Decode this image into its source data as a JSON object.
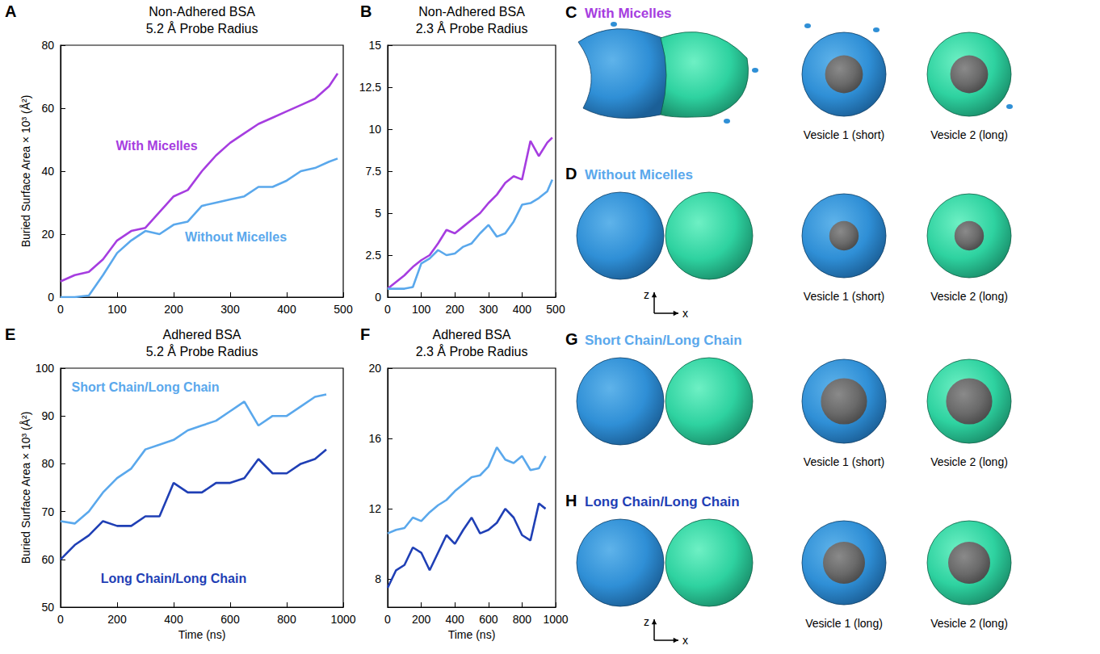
{
  "chart_data": [
    {
      "panel": "A",
      "type": "line",
      "title": "Non-Adhered BSA",
      "subtitle": "5.2 Å Probe Radius",
      "y_label": "Buried Surface Area × 10³ (Å²)",
      "grid": false,
      "x": [
        0,
        25,
        50,
        75,
        100,
        125,
        150,
        175,
        200,
        225,
        250,
        275,
        300,
        325,
        350,
        375,
        400,
        425,
        450,
        475,
        490
      ],
      "xlim": [
        0,
        500
      ],
      "xticks": [
        0,
        100,
        200,
        300,
        400,
        500
      ],
      "ylim": [
        0,
        80
      ],
      "yticks": [
        0,
        20,
        40,
        60,
        80
      ],
      "series": [
        {
          "name": "With Micelles",
          "color": "#a63de0",
          "values": [
            5,
            7,
            8,
            12,
            18,
            21,
            22,
            27,
            32,
            34,
            40,
            45,
            49,
            52,
            55,
            57,
            59,
            61,
            63,
            67,
            71
          ]
        },
        {
          "name": "Without Micelles",
          "color": "#5aa8ec",
          "values": [
            0,
            0,
            0.5,
            7,
            14,
            18,
            21,
            20,
            23,
            24,
            29,
            30,
            31,
            32,
            35,
            35,
            37,
            40,
            41,
            43,
            44
          ]
        }
      ]
    },
    {
      "panel": "B",
      "type": "line",
      "title": "Non-Adhered BSA",
      "subtitle": "2.3 Å Probe Radius",
      "grid": false,
      "x": [
        0,
        25,
        50,
        75,
        100,
        125,
        150,
        175,
        200,
        225,
        250,
        275,
        300,
        325,
        350,
        375,
        400,
        425,
        450,
        475,
        490
      ],
      "xlim": [
        0,
        500
      ],
      "xticks": [
        0,
        100,
        200,
        300,
        400,
        500
      ],
      "ylim": [
        0,
        15
      ],
      "yticks": [
        0,
        2.5,
        5,
        7.5,
        10,
        12.5,
        15
      ],
      "series": [
        {
          "color": "#a63de0",
          "values": [
            0.5,
            0.9,
            1.3,
            1.8,
            2.2,
            2.5,
            3.2,
            4.0,
            3.8,
            4.2,
            4.6,
            5.0,
            5.6,
            6.1,
            6.8,
            7.2,
            7.0,
            9.3,
            8.4,
            9.2,
            9.5
          ]
        },
        {
          "color": "#5aa8ec",
          "values": [
            0.5,
            0.5,
            0.5,
            0.6,
            2.0,
            2.3,
            2.8,
            2.5,
            2.6,
            3.0,
            3.2,
            3.8,
            4.3,
            3.6,
            3.8,
            4.5,
            5.5,
            5.6,
            5.9,
            6.3,
            7.0
          ]
        }
      ]
    },
    {
      "panel": "E",
      "type": "line",
      "title": "Adhered BSA",
      "subtitle": "5.2 Å Probe Radius",
      "y_label": "Buried Surface Area × 10³ (Å²)",
      "x_label": "Time (ns)",
      "grid": false,
      "x": [
        0,
        50,
        100,
        150,
        200,
        250,
        300,
        350,
        400,
        450,
        500,
        550,
        600,
        650,
        700,
        750,
        800,
        850,
        900,
        940
      ],
      "xlim": [
        0,
        1000
      ],
      "xticks": [
        0,
        200,
        400,
        600,
        800,
        1000
      ],
      "ylim": [
        50,
        100
      ],
      "yticks": [
        50,
        60,
        70,
        80,
        90,
        100
      ],
      "series": [
        {
          "name": "Short Chain/Long Chain",
          "color": "#5aa8ec",
          "values": [
            68,
            67.5,
            70,
            74,
            77,
            79,
            83,
            84,
            85,
            87,
            88,
            89,
            91,
            93,
            88,
            90,
            90,
            92,
            94,
            94.5
          ]
        },
        {
          "name": "Long Chain/Long Chain",
          "color": "#1f3fb5",
          "values": [
            60,
            63,
            65,
            68,
            67,
            67,
            69,
            69,
            76,
            74,
            74,
            76,
            76,
            77,
            81,
            78,
            78,
            80,
            81,
            83
          ]
        }
      ]
    },
    {
      "panel": "F",
      "type": "line",
      "title": "Adhered BSA",
      "subtitle": "2.3 Å Probe Radius",
      "x_label": "Time (ns)",
      "grid": false,
      "x": [
        0,
        50,
        100,
        150,
        200,
        250,
        300,
        350,
        400,
        450,
        500,
        550,
        600,
        650,
        700,
        750,
        800,
        850,
        900,
        940
      ],
      "xlim": [
        0,
        1000
      ],
      "xticks": [
        0,
        200,
        400,
        600,
        800,
        1000
      ],
      "ylim": [
        6.4,
        20
      ],
      "yticks": [
        8,
        12,
        16,
        20
      ],
      "series": [
        {
          "color": "#5aa8ec",
          "values": [
            10.6,
            10.8,
            10.9,
            11.5,
            11.3,
            11.8,
            12.2,
            12.5,
            13,
            13.4,
            13.8,
            13.9,
            14.4,
            15.5,
            14.8,
            14.6,
            15.0,
            14.2,
            14.3,
            15.0
          ]
        },
        {
          "color": "#1f3fb5",
          "values": [
            7.5,
            8.5,
            8.8,
            9.8,
            9.5,
            8.5,
            9.5,
            10.5,
            10.0,
            10.8,
            11.5,
            10.6,
            10.8,
            11.2,
            12.0,
            11.5,
            10.5,
            10.2,
            12.3,
            12.0
          ]
        }
      ]
    }
  ],
  "illustrations": [
    {
      "panel": "C",
      "title": "With Micelles",
      "color": "#a63de0",
      "views": [
        "Vesicle 1 (short)",
        "Vesicle 2 (long)"
      ]
    },
    {
      "panel": "D",
      "title": "Without Micelles",
      "color": "#5aa8ec",
      "views": [
        "Vesicle 1 (short)",
        "Vesicle 2 (long)"
      ],
      "axes": [
        "z",
        "x"
      ]
    },
    {
      "panel": "G",
      "title": "Short Chain/Long Chain",
      "color": "#5aa8ec",
      "views": [
        "Vesicle 1 (short)",
        "Vesicle 2 (long)"
      ]
    },
    {
      "panel": "H",
      "title": "Long Chain/Long Chain",
      "color": "#1f3fb5",
      "views": [
        "Vesicle 1 (long)",
        "Vesicle 2 (long)"
      ],
      "axes": [
        "z",
        "x"
      ]
    }
  ]
}
